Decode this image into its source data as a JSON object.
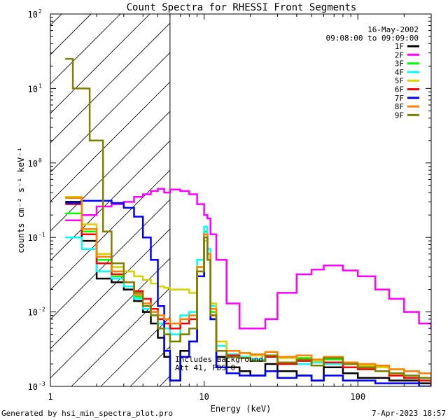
{
  "chart_data": {
    "type": "line",
    "title": "Count Spectra for RHESSI Front Segments",
    "xlabel": "Energy (keV)",
    "ylabel": "counts cm⁻² s⁻¹ keV⁻¹",
    "xscale": "log",
    "yscale": "log",
    "xlim": [
      1,
      300
    ],
    "ylim": [
      0.001,
      100
    ],
    "x_tick_labels": [
      "1",
      "10",
      "100"
    ],
    "y_tick_labels": [
      {
        "base": "10",
        "exp": "-3"
      },
      {
        "base": "10",
        "exp": "-2"
      },
      {
        "base": "10",
        "exp": "-1"
      },
      {
        "base": "10",
        "exp": "0"
      },
      {
        "base": "10",
        "exp": "1"
      },
      {
        "base": "10",
        "exp": "2"
      }
    ],
    "attenuated_region_keV": [
      1,
      6
    ],
    "date_label": "16-May-2002",
    "time_range_label": "09:08:00 to 09:09:00",
    "annotation_lines": [
      "Includes Background",
      "Att 41, FDS 0"
    ],
    "series": [
      {
        "name": "1F",
        "color": "#000000",
        "x": [
          1.25,
          1.6,
          2.0,
          2.5,
          3.0,
          3.5,
          4.0,
          4.5,
          5.0,
          5.5,
          6.0,
          7.0,
          8.0,
          9.0,
          10.0,
          10.5,
          11.0,
          12.0,
          14.0,
          17.0,
          20.0,
          25.0,
          30.0,
          40.0,
          50.0,
          60.0,
          80.0,
          100.0,
          130.0,
          160.0,
          200.0,
          250.0,
          300.0
        ],
        "values": [
          0.3,
          0.09,
          0.028,
          0.025,
          0.02,
          0.014,
          0.01,
          0.007,
          0.0045,
          0.0025,
          0.0012,
          0.003,
          0.004,
          0.03,
          0.11,
          0.05,
          0.008,
          0.0025,
          0.0018,
          0.0016,
          0.0014,
          0.002,
          0.0016,
          0.0014,
          0.0012,
          0.0018,
          0.0015,
          0.0013,
          0.0013,
          0.0012,
          0.0012,
          0.0011,
          0.001
        ]
      },
      {
        "name": "2F",
        "color": "#ff00ff",
        "x": [
          1.25,
          1.6,
          2.0,
          2.5,
          3.0,
          3.5,
          4.0,
          4.5,
          5.0,
          5.5,
          6.0,
          7.0,
          8.0,
          9.0,
          10.0,
          10.5,
          11.0,
          12.0,
          14.0,
          17.0,
          20.0,
          25.0,
          30.0,
          40.0,
          50.0,
          60.0,
          80.0,
          100.0,
          130.0,
          160.0,
          200.0,
          250.0,
          300.0
        ],
        "values": [
          0.17,
          0.2,
          0.26,
          0.28,
          0.3,
          0.35,
          0.38,
          0.42,
          0.45,
          0.4,
          0.44,
          0.42,
          0.38,
          0.28,
          0.2,
          0.18,
          0.11,
          0.05,
          0.013,
          0.006,
          0.006,
          0.008,
          0.018,
          0.032,
          0.037,
          0.042,
          0.036,
          0.03,
          0.02,
          0.015,
          0.01,
          0.007,
          0.006
        ]
      },
      {
        "name": "3F",
        "color": "#00ff00",
        "x": [
          1.25,
          1.6,
          2.0,
          2.5,
          3.0,
          3.5,
          4.0,
          4.5,
          5.0,
          5.5,
          6.0,
          7.0,
          8.0,
          9.0,
          10.0,
          10.5,
          11.0,
          12.0,
          14.0,
          17.0,
          20.0,
          25.0,
          30.0,
          40.0,
          50.0,
          60.0,
          80.0,
          100.0,
          130.0,
          160.0,
          200.0,
          250.0,
          300.0
        ],
        "values": [
          0.21,
          0.12,
          0.05,
          0.03,
          0.022,
          0.016,
          0.012,
          0.009,
          0.007,
          0.005,
          0.004,
          0.005,
          0.006,
          0.04,
          0.12,
          0.06,
          0.01,
          0.003,
          0.0025,
          0.0028,
          0.0022,
          0.0026,
          0.002,
          0.0024,
          0.0019,
          0.0023,
          0.0018,
          0.0017,
          0.0016,
          0.0014,
          0.0013,
          0.0012,
          0.0011
        ]
      },
      {
        "name": "4F",
        "color": "#00ffff",
        "x": [
          1.25,
          1.6,
          2.0,
          2.5,
          3.0,
          3.5,
          4.0,
          4.5,
          5.0,
          5.5,
          6.0,
          7.0,
          8.0,
          9.0,
          10.0,
          10.5,
          11.0,
          12.0,
          14.0,
          17.0,
          20.0,
          25.0,
          30.0,
          40.0,
          50.0,
          60.0,
          80.0,
          100.0,
          130.0,
          160.0,
          200.0,
          250.0,
          300.0
        ],
        "values": [
          0.1,
          0.07,
          0.035,
          0.028,
          0.022,
          0.015,
          0.011,
          0.009,
          0.007,
          0.006,
          0.005,
          0.009,
          0.01,
          0.05,
          0.14,
          0.07,
          0.012,
          0.0035,
          0.0027,
          0.0025,
          0.0023,
          0.0025,
          0.0021,
          0.002,
          0.0021,
          0.002,
          0.0018,
          0.0017,
          0.0016,
          0.0015,
          0.0014,
          0.0013,
          0.0012
        ]
      },
      {
        "name": "5F",
        "color": "#d4d400",
        "x": [
          1.25,
          1.6,
          2.0,
          2.5,
          3.0,
          3.5,
          4.0,
          4.5,
          5.0,
          5.5,
          6.0,
          7.0,
          8.0,
          9.0,
          10.0,
          10.5,
          11.0,
          12.0,
          14.0,
          17.0,
          20.0,
          25.0,
          30.0,
          40.0,
          50.0,
          60.0,
          80.0,
          100.0,
          130.0,
          160.0,
          200.0,
          250.0,
          300.0
        ],
        "values": [
          0.35,
          0.15,
          0.06,
          0.04,
          0.035,
          0.03,
          0.027,
          0.024,
          0.022,
          0.021,
          0.02,
          0.02,
          0.018,
          0.04,
          0.09,
          0.05,
          0.013,
          0.004,
          0.003,
          0.0028,
          0.0026,
          0.0025,
          0.0024,
          0.0023,
          0.0022,
          0.0021,
          0.002,
          0.0019,
          0.0018,
          0.0017,
          0.0016,
          0.0015,
          0.0014
        ]
      },
      {
        "name": "6F",
        "color": "#ff0000",
        "x": [
          1.25,
          1.6,
          2.0,
          2.5,
          3.0,
          3.5,
          4.0,
          4.5,
          5.0,
          5.5,
          6.0,
          7.0,
          8.0,
          9.0,
          10.0,
          10.5,
          11.0,
          12.0,
          14.0,
          17.0,
          20.0,
          25.0,
          30.0,
          40.0,
          50.0,
          60.0,
          80.0,
          100.0,
          130.0,
          160.0,
          200.0,
          250.0,
          300.0
        ],
        "values": [
          0.28,
          0.11,
          0.045,
          0.032,
          0.025,
          0.019,
          0.015,
          0.011,
          0.008,
          0.007,
          0.006,
          0.007,
          0.008,
          0.035,
          0.1,
          0.05,
          0.009,
          0.003,
          0.0026,
          0.0024,
          0.0022,
          0.0025,
          0.002,
          0.0022,
          0.0019,
          0.0021,
          0.0018,
          0.0017,
          0.0016,
          0.0014,
          0.0013,
          0.0012,
          0.0011
        ]
      },
      {
        "name": "7F",
        "color": "#0000ff",
        "x": [
          1.25,
          1.6,
          2.0,
          2.5,
          3.0,
          3.5,
          4.0,
          4.5,
          5.0,
          5.5,
          6.0,
          7.0,
          8.0,
          9.0,
          10.0,
          10.5,
          11.0,
          12.0,
          14.0,
          17.0,
          20.0,
          25.0,
          30.0,
          40.0,
          50.0,
          60.0,
          80.0,
          100.0,
          130.0,
          160.0,
          200.0,
          250.0,
          300.0
        ],
        "values": [
          0.29,
          0.31,
          0.31,
          0.29,
          0.25,
          0.19,
          0.1,
          0.05,
          0.012,
          0.003,
          0.0012,
          0.0025,
          0.004,
          0.03,
          0.1,
          0.05,
          0.008,
          0.0018,
          0.0015,
          0.0014,
          0.0014,
          0.0016,
          0.0013,
          0.0014,
          0.0012,
          0.0014,
          0.0012,
          0.0012,
          0.0011,
          0.0011,
          0.0011,
          0.001,
          0.001
        ]
      },
      {
        "name": "8F",
        "color": "#ff8000",
        "x": [
          1.25,
          1.6,
          2.0,
          2.5,
          3.0,
          3.5,
          4.0,
          4.5,
          5.0,
          5.5,
          6.0,
          7.0,
          8.0,
          9.0,
          10.0,
          10.5,
          11.0,
          12.0,
          14.0,
          17.0,
          20.0,
          25.0,
          30.0,
          40.0,
          50.0,
          60.0,
          80.0,
          100.0,
          130.0,
          160.0,
          200.0,
          250.0,
          300.0
        ],
        "values": [
          0.34,
          0.13,
          0.055,
          0.035,
          0.025,
          0.017,
          0.013,
          0.01,
          0.009,
          0.008,
          0.007,
          0.008,
          0.009,
          0.04,
          0.11,
          0.06,
          0.011,
          0.003,
          0.003,
          0.0028,
          0.0027,
          0.0029,
          0.0025,
          0.0026,
          0.0023,
          0.0025,
          0.0021,
          0.002,
          0.0019,
          0.0017,
          0.0016,
          0.0015,
          0.0014
        ]
      },
      {
        "name": "9F",
        "color": "#808000",
        "x": [
          1.25,
          1.4,
          1.6,
          1.8,
          2.0,
          2.2,
          2.5,
          3.0,
          3.5,
          4.0,
          4.5,
          5.0,
          5.5,
          6.0,
          7.0,
          8.0,
          9.0,
          10.0,
          10.5,
          11.0,
          12.0,
          14.0,
          17.0,
          20.0,
          25.0,
          30.0,
          40.0,
          50.0,
          60.0,
          80.0,
          100.0,
          130.0,
          160.0,
          200.0,
          250.0,
          300.0
        ],
        "values": [
          25,
          10,
          10,
          2,
          2,
          0.12,
          0.045,
          0.025,
          0.018,
          0.012,
          0.009,
          0.006,
          0.005,
          0.004,
          0.005,
          0.006,
          0.035,
          0.1,
          0.05,
          0.009,
          0.003,
          0.0025,
          0.0024,
          0.0022,
          0.0026,
          0.0021,
          0.0023,
          0.0019,
          0.0024,
          0.002,
          0.0018,
          0.0016,
          0.0015,
          0.0014,
          0.0013,
          0.0012
        ]
      }
    ]
  },
  "footer": {
    "generated_by": "Generated by hsi_min_spectra_plot.pro",
    "timestamp": "7-Apr-2023 18:57"
  }
}
